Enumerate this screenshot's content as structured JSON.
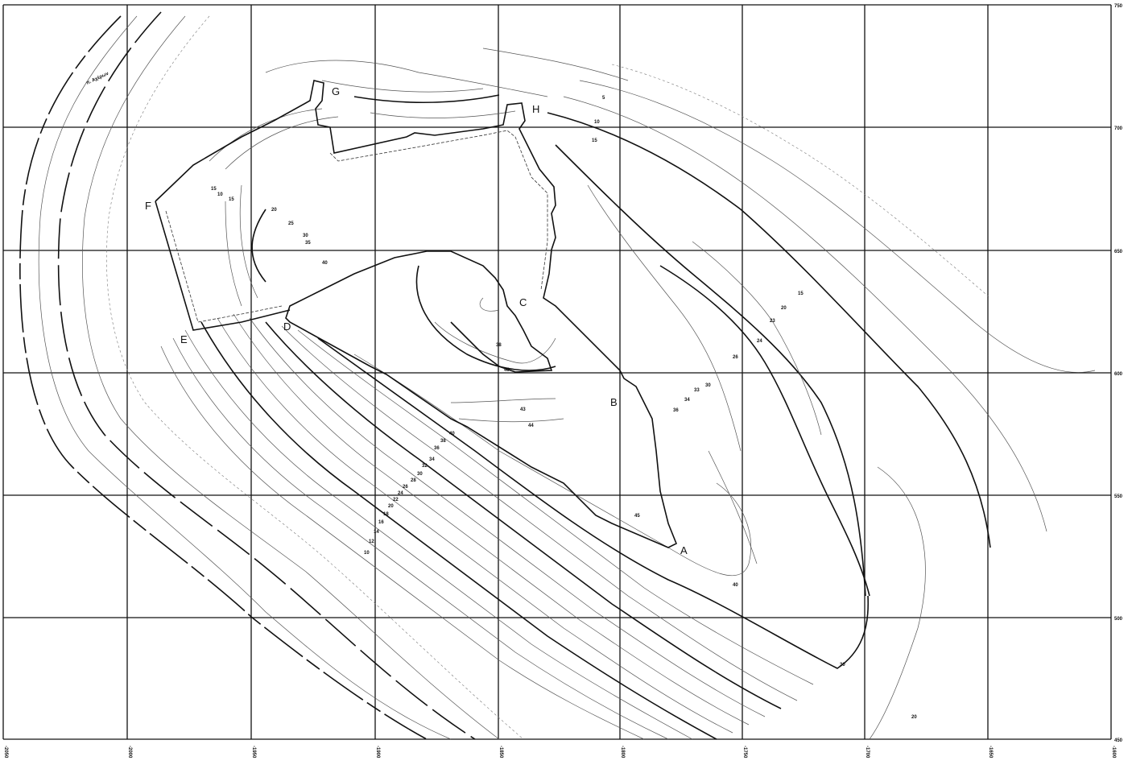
{
  "map": {
    "river_label": "π. Αχέρων",
    "x_axis_labels": [
      "-2050",
      "-2000",
      "-1950",
      "-1900",
      "-1850",
      "-1800",
      "-1750",
      "-1700",
      "-1650",
      "-1600"
    ],
    "y_axis_labels": [
      "750",
      "700",
      "650",
      "600",
      "550",
      "500",
      "450"
    ],
    "point_labels": [
      "A",
      "B",
      "C",
      "D",
      "E",
      "F",
      "G",
      "H"
    ],
    "contour_labels": [
      "5",
      "10",
      "15",
      "15",
      "10",
      "15",
      "20",
      "25",
      "30",
      "35",
      "40",
      "38",
      "40",
      "43",
      "44",
      "15",
      "20",
      "23",
      "24",
      "26",
      "30",
      "33",
      "34",
      "36",
      "40",
      "38",
      "36",
      "34",
      "32",
      "30",
      "28",
      "26",
      "24",
      "22",
      "20",
      "18",
      "16",
      "14",
      "12",
      "10",
      "45",
      "40",
      "30",
      "20"
    ]
  }
}
